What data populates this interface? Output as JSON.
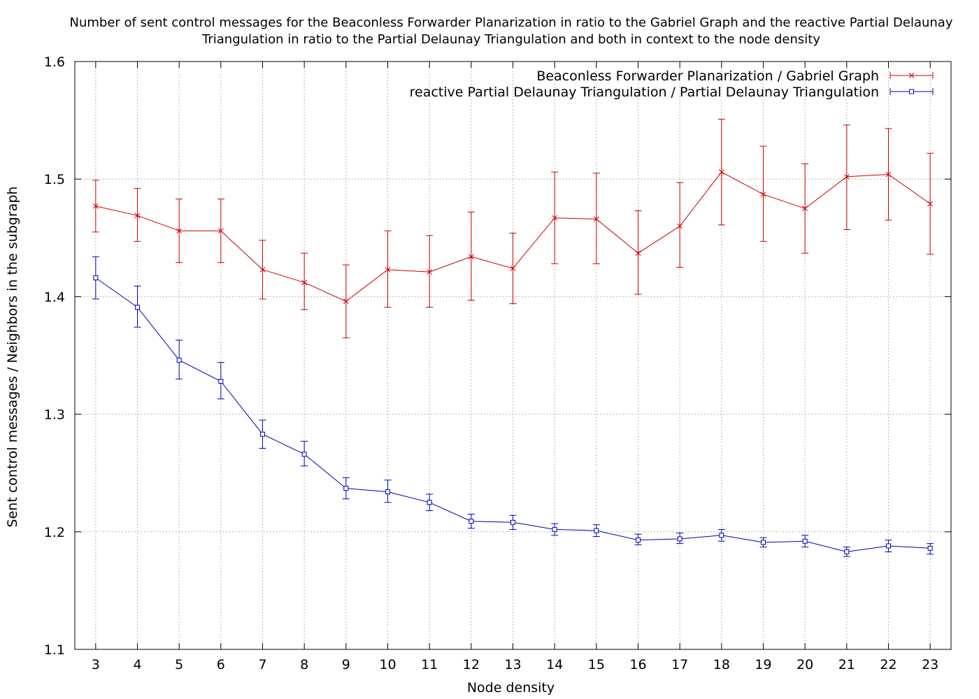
{
  "chart_data": {
    "type": "line",
    "title_lines": [
      "Number of sent control messages for the Beaconless Forwarder Planarization in ratio to the Gabriel Graph and the reactive Partial Delaunay",
      "Triangulation in ratio to the Partial Delaunay Triangulation and both in context to the node density"
    ],
    "xlabel": "Node density",
    "ylabel": "Sent control messages / Neighbors in the subgraph",
    "x": [
      3,
      4,
      5,
      6,
      7,
      8,
      9,
      10,
      11,
      12,
      13,
      14,
      15,
      16,
      17,
      18,
      19,
      20,
      21,
      22,
      23
    ],
    "x_ticks": [
      "3",
      "4",
      "5",
      "6",
      "7",
      "8",
      "9",
      "10",
      "11",
      "12",
      "13",
      "14",
      "15",
      "16",
      "17",
      "18",
      "19",
      "20",
      "21",
      "22",
      "23"
    ],
    "xlim": [
      2.5,
      23.5
    ],
    "ylim": [
      1.1,
      1.6
    ],
    "y_ticks": [
      "1.1",
      "1.2",
      "1.3",
      "1.4",
      "1.5",
      "1.6"
    ],
    "grid": true,
    "legend_position": "top-right",
    "series": [
      {
        "name": "Beaconless Forwarder Planarization / Gabriel Graph",
        "color": "#cc0000",
        "marker": "x",
        "values": [
          1.477,
          1.469,
          1.456,
          1.456,
          1.423,
          1.412,
          1.396,
          1.423,
          1.421,
          1.434,
          1.424,
          1.467,
          1.466,
          1.437,
          1.46,
          1.506,
          1.487,
          1.475,
          1.502,
          1.504,
          1.479
        ],
        "err_low": [
          1.455,
          1.447,
          1.429,
          1.429,
          1.398,
          1.389,
          1.365,
          1.391,
          1.391,
          1.397,
          1.394,
          1.428,
          1.428,
          1.402,
          1.425,
          1.461,
          1.447,
          1.437,
          1.457,
          1.465,
          1.436
        ],
        "err_high": [
          1.499,
          1.492,
          1.483,
          1.483,
          1.448,
          1.437,
          1.427,
          1.456,
          1.452,
          1.472,
          1.454,
          1.506,
          1.505,
          1.473,
          1.497,
          1.551,
          1.528,
          1.513,
          1.546,
          1.543,
          1.522
        ]
      },
      {
        "name": "reactive Partial Delaunay Triangulation / Partial Delaunay Triangulation",
        "color": "#0000bb",
        "marker": "square",
        "values": [
          1.416,
          1.391,
          1.346,
          1.328,
          1.283,
          1.266,
          1.237,
          1.234,
          1.225,
          1.209,
          1.208,
          1.202,
          1.201,
          1.193,
          1.194,
          1.197,
          1.191,
          1.192,
          1.183,
          1.188,
          1.186
        ],
        "err_low": [
          1.398,
          1.374,
          1.33,
          1.313,
          1.271,
          1.256,
          1.228,
          1.225,
          1.218,
          1.203,
          1.202,
          1.197,
          1.196,
          1.189,
          1.19,
          1.192,
          1.187,
          1.187,
          1.179,
          1.183,
          1.181
        ],
        "err_high": [
          1.434,
          1.409,
          1.363,
          1.344,
          1.295,
          1.277,
          1.246,
          1.244,
          1.232,
          1.215,
          1.214,
          1.207,
          1.206,
          1.198,
          1.199,
          1.202,
          1.195,
          1.197,
          1.187,
          1.193,
          1.19
        ]
      }
    ]
  }
}
